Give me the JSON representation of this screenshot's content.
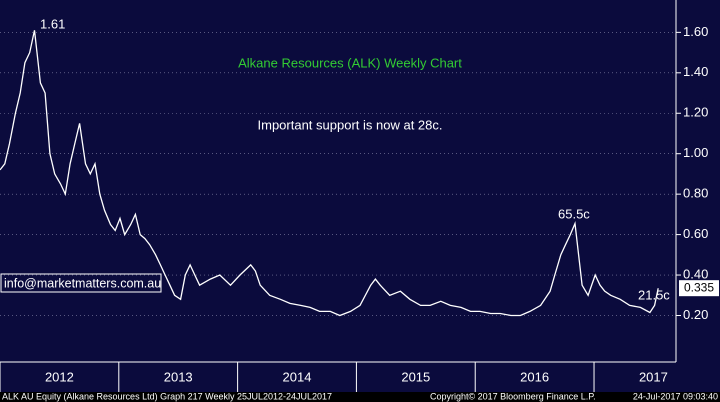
{
  "chart_data": {
    "type": "line",
    "title": "Alkane Resources (ALK) Weekly Chart",
    "subtitle": "Important support is now at 28c.",
    "annotations": [
      "1.61",
      "65.5c",
      "21.5c"
    ],
    "source": "info@marketmatters.com.au",
    "footer": [
      "ALK AU Equity (Alkane Resources Ltd) Graph 217  Weekly 25JUL2012-24JUL2017",
      "Copyright© 2017 Bloomberg Finance L.P.",
      "24-Jul-2017 09:03:40"
    ],
    "last_price": 0.335,
    "series": [
      {
        "name": "ALK",
        "color": "#ffffff",
        "x": [
          2012.0,
          2012.04,
          2012.08,
          2012.13,
          2012.17,
          2012.21,
          2012.25,
          2012.29,
          2012.34,
          2012.38,
          2012.42,
          2012.46,
          2012.51,
          2012.55,
          2012.59,
          2012.63,
          2012.67,
          2012.72,
          2012.76,
          2012.8,
          2012.84,
          2012.88,
          2012.93,
          2012.97,
          2013.01,
          2013.05,
          2013.1,
          2013.14,
          2013.18,
          2013.22,
          2013.26,
          2013.31,
          2013.35,
          2013.39,
          2013.43,
          2013.47,
          2013.52,
          2013.56,
          2013.6,
          2013.64,
          2013.68,
          2013.77,
          2013.85,
          2013.94,
          2014.02,
          2014.11,
          2014.15,
          2014.19,
          2014.27,
          2014.36,
          2014.44,
          2014.53,
          2014.61,
          2014.69,
          2014.78,
          2014.86,
          2014.95,
          2015.03,
          2015.12,
          2015.16,
          2015.2,
          2015.28,
          2015.37,
          2015.45,
          2015.54,
          2015.62,
          2015.71,
          2015.79,
          2015.88,
          2015.96,
          2016.04,
          2016.13,
          2016.21,
          2016.3,
          2016.38,
          2016.46,
          2016.55,
          2016.63,
          2016.67,
          2016.72,
          2016.76,
          2016.8,
          2016.84,
          2016.87,
          2016.9,
          2016.95,
          2017.01,
          2017.05,
          2017.09,
          2017.14,
          2017.22,
          2017.3,
          2017.39,
          2017.47,
          2017.51,
          2017.54
        ],
        "values": [
          0.92,
          0.95,
          1.05,
          1.2,
          1.3,
          1.45,
          1.5,
          1.61,
          1.35,
          1.3,
          1.0,
          0.9,
          0.85,
          0.8,
          0.95,
          1.05,
          1.15,
          0.95,
          0.9,
          0.95,
          0.8,
          0.72,
          0.65,
          0.62,
          0.68,
          0.6,
          0.65,
          0.7,
          0.6,
          0.58,
          0.55,
          0.5,
          0.45,
          0.4,
          0.35,
          0.3,
          0.28,
          0.4,
          0.45,
          0.4,
          0.35,
          0.38,
          0.4,
          0.35,
          0.4,
          0.45,
          0.42,
          0.35,
          0.3,
          0.28,
          0.26,
          0.25,
          0.24,
          0.22,
          0.22,
          0.2,
          0.22,
          0.25,
          0.35,
          0.38,
          0.35,
          0.3,
          0.32,
          0.28,
          0.25,
          0.25,
          0.27,
          0.25,
          0.24,
          0.22,
          0.22,
          0.21,
          0.21,
          0.2,
          0.2,
          0.22,
          0.25,
          0.32,
          0.4,
          0.5,
          0.55,
          0.6,
          0.655,
          0.5,
          0.35,
          0.3,
          0.4,
          0.35,
          0.32,
          0.3,
          0.28,
          0.25,
          0.24,
          0.215,
          0.25,
          0.335
        ]
      }
    ],
    "xlim": [
      2012.0,
      2017.69
    ],
    "xticks": [
      {
        "value": 2012.5,
        "label": "2012"
      },
      {
        "value": 2013.5,
        "label": "2013"
      },
      {
        "value": 2014.5,
        "label": "2014"
      },
      {
        "value": 2015.5,
        "label": "2015"
      },
      {
        "value": 2016.5,
        "label": "2016"
      },
      {
        "value": 2017.5,
        "label": "2017"
      }
    ],
    "ylim": [
      -0.03,
      1.76
    ],
    "yticks": [
      {
        "value": 0.2,
        "label": "0.20"
      },
      {
        "value": 0.4,
        "label": "0.40"
      },
      {
        "value": 0.6,
        "label": "0.60"
      },
      {
        "value": 0.8,
        "label": "0.80"
      },
      {
        "value": 1.0,
        "label": "1.00"
      },
      {
        "value": 1.2,
        "label": "1.20"
      },
      {
        "value": 1.4,
        "label": "1.40"
      },
      {
        "value": 1.6,
        "label": "1.60"
      }
    ],
    "grid": true,
    "title_color": "#33cc33"
  }
}
